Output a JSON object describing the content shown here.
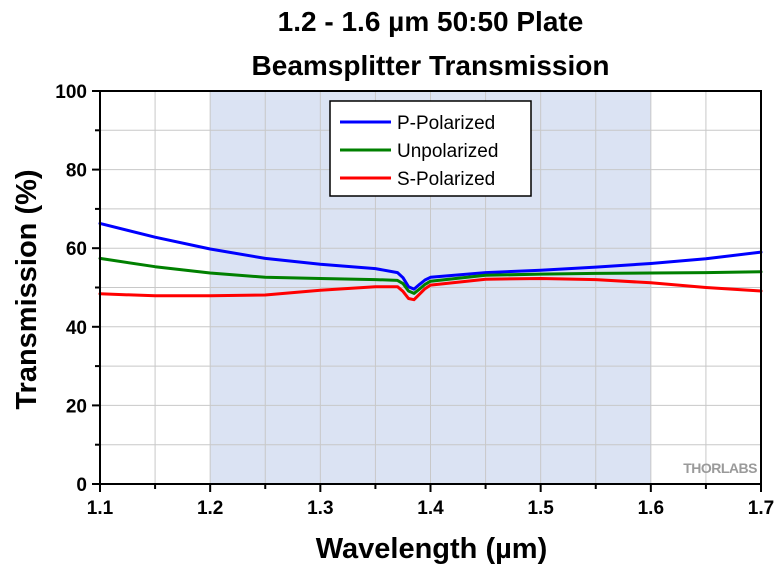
{
  "chart_data": {
    "type": "line",
    "title": [
      "1.2 - 1.6 µm 50:50 Plate",
      "Beamsplitter Transmission"
    ],
    "xlabel": "Wavelength (µm)",
    "ylabel": "Transmission (%)",
    "xlim": [
      1.1,
      1.7
    ],
    "ylim": [
      0,
      100
    ],
    "x_ticks": [
      "1.1",
      "1.2",
      "1.3",
      "1.4",
      "1.5",
      "1.6",
      "1.7"
    ],
    "y_ticks": [
      "0",
      "20",
      "40",
      "60",
      "80",
      "100"
    ],
    "grid": true,
    "shaded_range": [
      1.2,
      1.6
    ],
    "shaded_color": "#dbe3f3",
    "legend_position": "top-center",
    "watermark": "THORLABS",
    "series": [
      {
        "name": "P-Polarized",
        "color": "#0000ff",
        "x": [
          1.1,
          1.15,
          1.2,
          1.25,
          1.3,
          1.35,
          1.37,
          1.375,
          1.38,
          1.385,
          1.39,
          1.395,
          1.4,
          1.45,
          1.5,
          1.55,
          1.6,
          1.65,
          1.7
        ],
        "y": [
          66.3,
          62.8,
          59.8,
          57.4,
          55.9,
          54.8,
          53.8,
          52.5,
          50.2,
          49.6,
          50.8,
          51.9,
          52.6,
          53.8,
          54.4,
          55.2,
          56.1,
          57.3,
          59.0
        ]
      },
      {
        "name": "Unpolarized",
        "color": "#008000",
        "x": [
          1.1,
          1.15,
          1.2,
          1.25,
          1.3,
          1.35,
          1.37,
          1.375,
          1.38,
          1.385,
          1.39,
          1.395,
          1.4,
          1.45,
          1.5,
          1.55,
          1.6,
          1.65,
          1.7
        ],
        "y": [
          57.4,
          55.3,
          53.7,
          52.6,
          52.3,
          52.0,
          51.8,
          51.0,
          49.1,
          48.5,
          49.6,
          50.8,
          51.6,
          53.1,
          53.4,
          53.6,
          53.7,
          53.8,
          54.0
        ]
      },
      {
        "name": "S-Polarized",
        "color": "#ff0000",
        "x": [
          1.1,
          1.15,
          1.2,
          1.25,
          1.3,
          1.35,
          1.37,
          1.375,
          1.38,
          1.385,
          1.39,
          1.395,
          1.4,
          1.45,
          1.5,
          1.55,
          1.6,
          1.65,
          1.7
        ],
        "y": [
          48.4,
          47.9,
          47.9,
          48.1,
          49.3,
          50.2,
          50.2,
          49.0,
          47.2,
          46.9,
          48.3,
          49.7,
          50.6,
          52.1,
          52.3,
          52.0,
          51.2,
          50.0,
          49.1
        ]
      }
    ]
  }
}
